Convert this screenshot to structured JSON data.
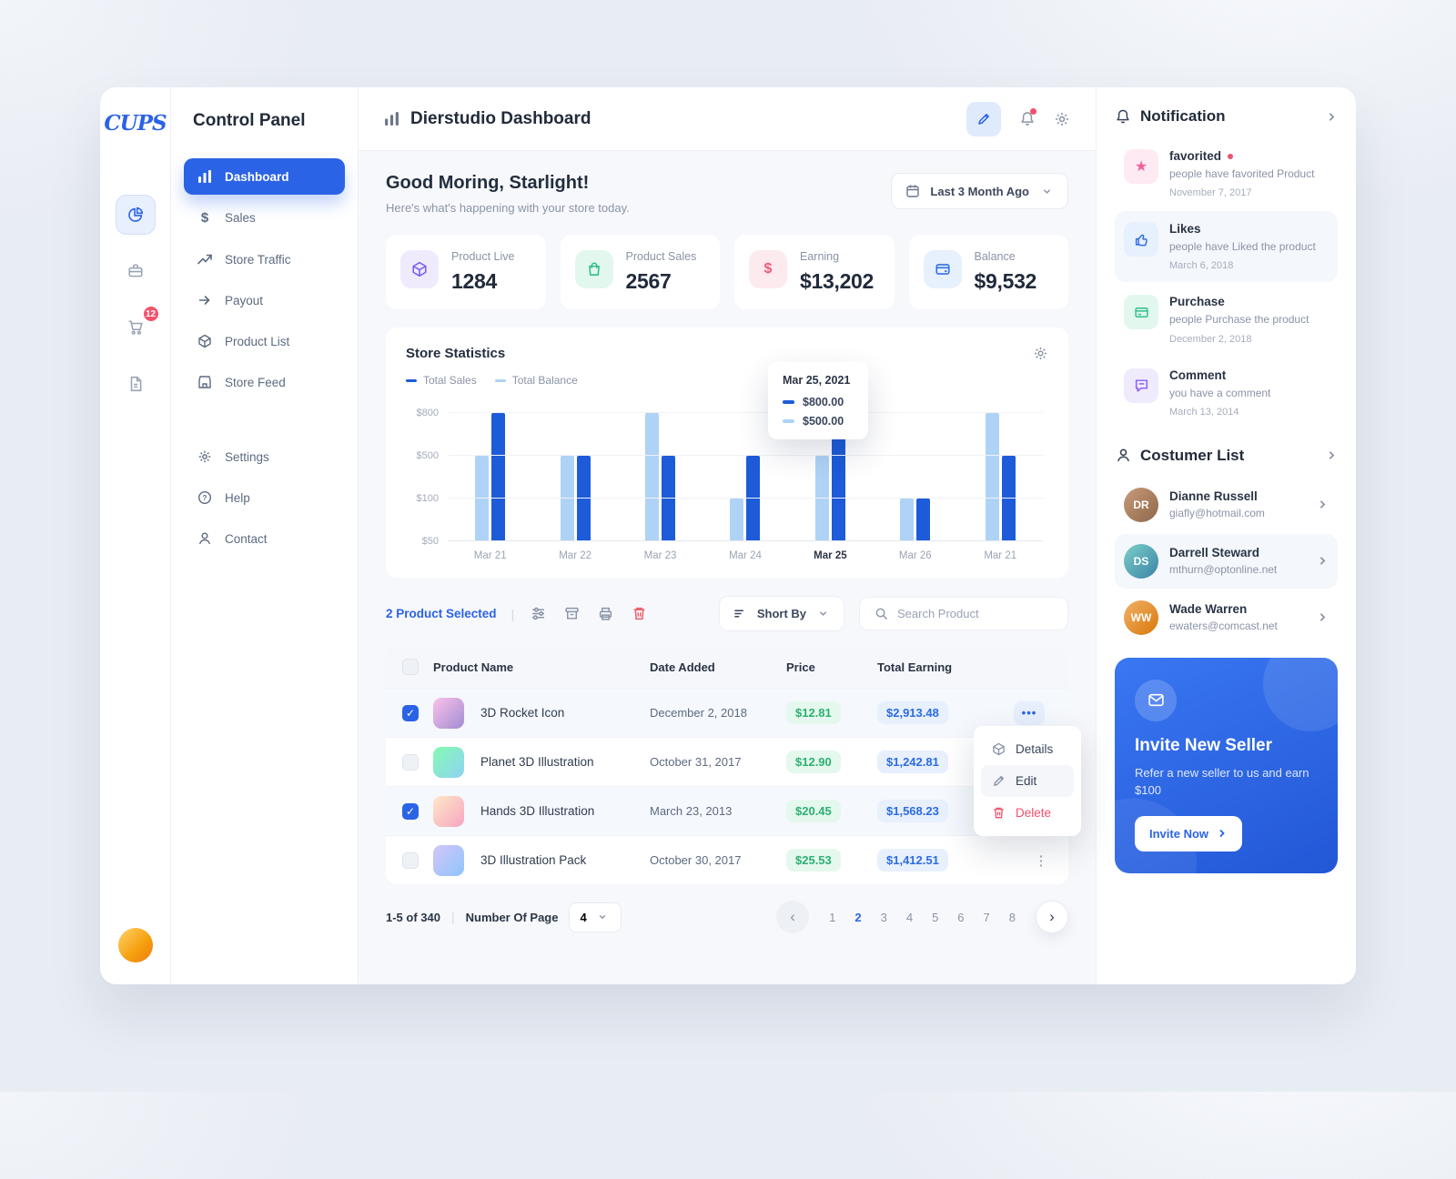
{
  "brand": {
    "logo_text": "CUPS",
    "panel_title": "Control Panel",
    "cart_badge": "12"
  },
  "header": {
    "title": "Dierstudio Dashboard"
  },
  "sidebar": {
    "items": [
      {
        "label": "Dashboard"
      },
      {
        "label": "Sales"
      },
      {
        "label": "Store Traffic"
      },
      {
        "label": "Payout"
      },
      {
        "label": "Product List"
      },
      {
        "label": "Store Feed"
      }
    ],
    "secondary": [
      {
        "label": "Settings"
      },
      {
        "label": "Help"
      },
      {
        "label": "Contact"
      }
    ]
  },
  "greeting": {
    "title": "Good Moring, Starlight!",
    "subtitle": "Here's what's happening with your store today.",
    "date_filter": "Last 3 Month Ago"
  },
  "stats": [
    {
      "label": "Product Live",
      "value": "1284",
      "accent": "#7c5cf0"
    },
    {
      "label": "Product Sales",
      "value": "2567",
      "accent": "#2fbf8f"
    },
    {
      "label": "Earning",
      "value": "$13,202",
      "accent": "#ef5b7a"
    },
    {
      "label": "Balance",
      "value": "$9,532",
      "accent": "#2f6fe4"
    }
  ],
  "chart_data": {
    "type": "bar",
    "title": "Store Statistics",
    "categories": [
      "Mar 21",
      "Mar 22",
      "Mar 23",
      "Mar 24",
      "Mar 25",
      "Mar 26",
      "Mar 21"
    ],
    "series": [
      {
        "name": "Total Sales",
        "color": "#1d5bd8",
        "values": [
          800,
          500,
          500,
          500,
          800,
          100,
          500
        ]
      },
      {
        "name": "Total Balance",
        "color": "#aed3f6",
        "values": [
          500,
          500,
          800,
          100,
          500,
          100,
          800
        ]
      }
    ],
    "ytick_labels": [
      "$800",
      "$500",
      "$100",
      "$50"
    ],
    "ytick_values": [
      800,
      500,
      100,
      50
    ],
    "ylim": [
      50,
      800
    ],
    "grid": true,
    "legend_position": "top-left",
    "highlight_index": 4,
    "tooltip": {
      "title": "Mar 25, 2021",
      "rows": [
        {
          "value": "$800.00",
          "color": "#1d5bd8"
        },
        {
          "value": "$500.00",
          "color": "#aed3f6"
        }
      ]
    }
  },
  "toolbar": {
    "selected_text": "2 Product Selected",
    "sort_label": "Short By",
    "search_placeholder": "Search Product"
  },
  "table": {
    "headers": {
      "name": "Product Name",
      "date": "Date Added",
      "price": "Price",
      "earning": "Total Earning"
    },
    "rows": [
      {
        "name": "3D Rocket Icon",
        "date": "December 2, 2018",
        "price": "$12.81",
        "earning": "$2,913.48",
        "checked": true
      },
      {
        "name": "Planet 3D Illustration",
        "date": "October 31, 2017",
        "price": "$12.90",
        "earning": "$1,242.81",
        "checked": false
      },
      {
        "name": "Hands 3D Illustration",
        "date": "March 23, 2013",
        "price": "$20.45",
        "earning": "$1,568.23",
        "checked": true
      },
      {
        "name": "3D Illustration Pack",
        "date": "October 30, 2017",
        "price": "$25.53",
        "earning": "$1,412.51",
        "checked": false
      }
    ]
  },
  "context_menu": {
    "items": [
      {
        "label": "Details"
      },
      {
        "label": "Edit"
      },
      {
        "label": "Delete"
      }
    ]
  },
  "pagination": {
    "range": "1-5 of 340",
    "label": "Number Of Page",
    "per_page": "4",
    "pages": [
      "1",
      "2",
      "3",
      "4",
      "5",
      "6",
      "7",
      "8"
    ],
    "active_page": "2"
  },
  "notifications": {
    "title": "Notification",
    "items": [
      {
        "title": "favorited",
        "desc": "people have favorited Product",
        "date": "November 7, 2017",
        "accent": "#f0609e",
        "has_dot": true
      },
      {
        "title": "Likes",
        "desc": "people have Liked the product",
        "date": "March 6, 2018",
        "accent": "#2f6fe4",
        "has_dot": false
      },
      {
        "title": "Purchase",
        "desc": "people Purchase the product",
        "date": "December 2, 2018",
        "accent": "#2fbf8f",
        "has_dot": false
      },
      {
        "title": "Comment",
        "desc": "you have a comment",
        "date": "March 13, 2014",
        "accent": "#8b5cf6",
        "has_dot": false
      }
    ]
  },
  "customers": {
    "title": "Costumer List",
    "items": [
      {
        "name": "Dianne Russell",
        "email": "giafly@hotmail.com"
      },
      {
        "name": "Darrell Steward",
        "email": "mthurn@optonline.net"
      },
      {
        "name": "Wade Warren",
        "email": "ewaters@comcast.net"
      }
    ]
  },
  "invite": {
    "title": "Invite New Seller",
    "desc": "Refer a new seller to us and earn $100",
    "button_label": "Invite Now"
  }
}
